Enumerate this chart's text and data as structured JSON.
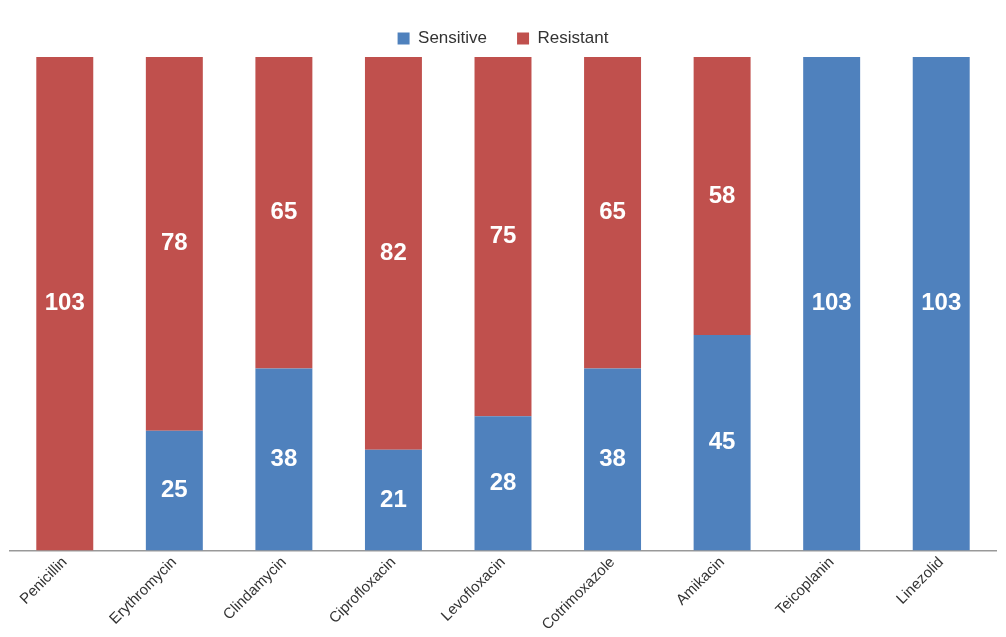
{
  "chart_data": {
    "type": "bar",
    "stacked": true,
    "legend": "top",
    "data_labels": true,
    "categories": [
      "Penicillin",
      "Erythromycin",
      "Clindamycin",
      "Ciprofloxacin",
      "Levofloxacin",
      "Cotrimoxazole",
      "Amikacin",
      "Teicoplanin",
      "Linezolid"
    ],
    "series": [
      {
        "name": "Sensitive",
        "color": "#4f81bd",
        "values": [
          null,
          25,
          38,
          21,
          28,
          38,
          45,
          103,
          103
        ]
      },
      {
        "name": "Resistant",
        "color": "#c0504d",
        "values": [
          103,
          78,
          65,
          82,
          75,
          65,
          58,
          null,
          null
        ]
      }
    ]
  }
}
